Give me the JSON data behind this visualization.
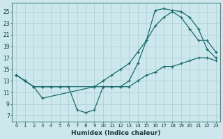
{
  "xlabel": "Humidex (Indice chaleur)",
  "background_color": "#cce8ec",
  "grid_color": "#b0d0d8",
  "line_color": "#1a6b6e",
  "xlim": [
    -0.5,
    23.5
  ],
  "ylim": [
    6,
    26.5
  ],
  "yticks": [
    7,
    9,
    11,
    13,
    15,
    17,
    19,
    21,
    23,
    25
  ],
  "xticks": [
    0,
    1,
    2,
    3,
    4,
    5,
    6,
    7,
    8,
    9,
    10,
    11,
    12,
    13,
    14,
    15,
    16,
    17,
    18,
    19,
    20,
    21,
    22,
    23
  ],
  "curve1_x": [
    0,
    1,
    2,
    3,
    4,
    5,
    6,
    7,
    8,
    9,
    10,
    11,
    12,
    13,
    14,
    15,
    16,
    17,
    18,
    19,
    20,
    21,
    22,
    23
  ],
  "curve1_y": [
    14,
    13,
    12,
    12,
    12,
    12,
    12,
    8,
    7.5,
    8,
    12,
    12,
    12,
    13,
    16,
    20,
    25.2,
    25.5,
    25.2,
    25,
    24,
    22,
    18.5,
    17
  ],
  "curve2_x": [
    0,
    1,
    2,
    3,
    4,
    5,
    9,
    10,
    11,
    12,
    13,
    14,
    15,
    16,
    17,
    18,
    19,
    20,
    21,
    22,
    23
  ],
  "curve2_y": [
    14,
    13,
    12,
    12,
    12,
    12,
    12,
    13,
    14,
    15,
    16,
    18,
    20,
    22.5,
    24,
    25,
    24,
    22,
    20,
    20,
    18
  ],
  "curve3_x": [
    0,
    1,
    2,
    3,
    9,
    10,
    11,
    12,
    13,
    14,
    15,
    16,
    17,
    18,
    19,
    20,
    21,
    22,
    23
  ],
  "curve3_y": [
    14,
    13,
    12,
    10,
    12,
    12,
    12,
    12,
    12,
    13,
    14,
    14.5,
    15.5,
    15.5,
    16,
    16.5,
    17,
    17,
    16.5
  ]
}
